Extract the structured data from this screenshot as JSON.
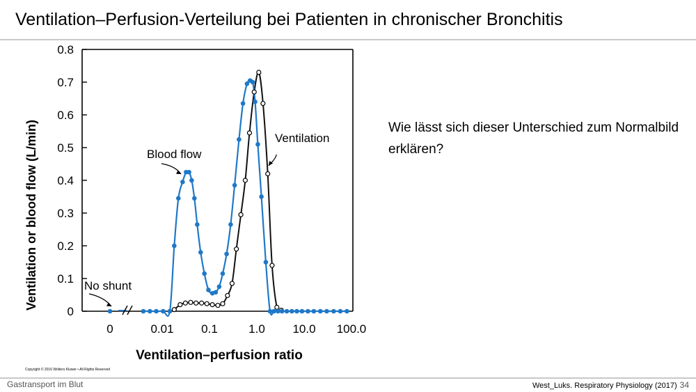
{
  "slide": {
    "title": "Ventilation–Perfusion-Verteilung bei Patienten in chronischer Bronchitis",
    "question": "Wie lässt sich dieser Unterschied zum Normalbild erklären?",
    "footer_left": "Gastransport im Blut",
    "footer_source": "West_Luks. Respiratory Physiology (2017)",
    "page_number": "34",
    "copyright": "Copyright © 2016 Wolters Kluwer • All Rights Reserved"
  },
  "chart_data": {
    "type": "line",
    "xlabel": "Ventilation–perfusion ratio",
    "ylabel": "Ventilation or blood flow (L/min)",
    "x_scale": "log",
    "x_ticks": [
      "0",
      "0.01",
      "0.1",
      "1.0",
      "10.0",
      "100.0"
    ],
    "y_ticks": [
      "0",
      "0.1",
      "0.2",
      "0.3",
      "0.4",
      "0.5",
      "0.6",
      "0.7",
      "0.8"
    ],
    "ylim": [
      0,
      0.8
    ],
    "grid": false,
    "annotations": {
      "blood_flow": "Blood flow",
      "ventilation": "Ventilation",
      "no_shunt": "No  shunt"
    },
    "colors": {
      "blood_flow": "#1f78c8",
      "ventilation": "#111111"
    },
    "shunt_point": {
      "x": 0,
      "y": 0
    },
    "series": [
      {
        "name": "Blood flow",
        "x": [
          0.004,
          0.0055,
          0.0075,
          0.0105,
          0.0145,
          0.018,
          0.022,
          0.027,
          0.032,
          0.037,
          0.042,
          0.048,
          0.055,
          0.065,
          0.078,
          0.095,
          0.115,
          0.135,
          0.16,
          0.19,
          0.23,
          0.28,
          0.34,
          0.42,
          0.51,
          0.62,
          0.72,
          0.82,
          0.92,
          1.05,
          1.25,
          1.55,
          1.9,
          2.3,
          2.8,
          3.4,
          4.3,
          5.5,
          7.0,
          9.0,
          12.0,
          16.0,
          22.0,
          30.0,
          42.0,
          58.0,
          80.0
        ],
        "y": [
          0,
          0,
          0,
          0,
          0,
          0.2,
          0.345,
          0.395,
          0.425,
          0.425,
          0.4,
          0.345,
          0.265,
          0.18,
          0.115,
          0.065,
          0.055,
          0.058,
          0.075,
          0.115,
          0.175,
          0.265,
          0.385,
          0.525,
          0.635,
          0.695,
          0.705,
          0.7,
          0.64,
          0.51,
          0.35,
          0.15,
          0.0,
          0,
          0,
          0,
          0,
          0,
          0,
          0,
          0,
          0,
          0,
          0,
          0,
          0,
          0
        ]
      },
      {
        "name": "Ventilation",
        "x": [
          0.018,
          0.024,
          0.031,
          0.04,
          0.052,
          0.068,
          0.088,
          0.115,
          0.15,
          0.19,
          0.24,
          0.3,
          0.37,
          0.46,
          0.57,
          0.7,
          0.88,
          1.1,
          1.35,
          1.7,
          2.1,
          2.65,
          3.3
        ],
        "y": [
          0.005,
          0.02,
          0.025,
          0.027,
          0.025,
          0.025,
          0.023,
          0.02,
          0.018,
          0.023,
          0.048,
          0.085,
          0.19,
          0.295,
          0.4,
          0.545,
          0.67,
          0.73,
          0.635,
          0.42,
          0.14,
          0.012,
          0.003
        ]
      }
    ]
  }
}
